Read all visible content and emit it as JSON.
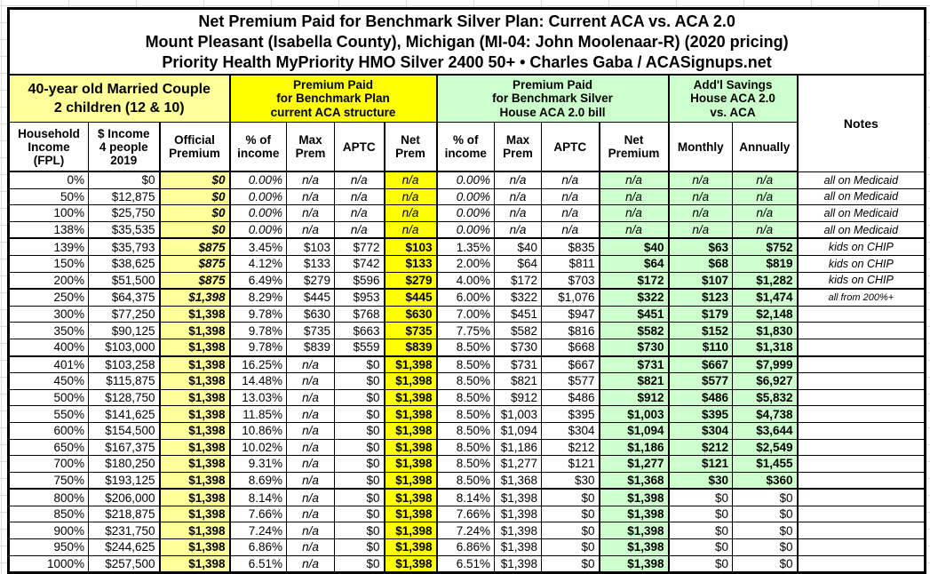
{
  "title_lines": [
    "Net Premium Paid for Benchmark Silver Plan: Current ACA vs. ACA 2.0",
    "Mount Pleasant (Isabella County), Michigan (MI-04: John Moolenaar-R) (2020 pricing)",
    "Priority Health MyPriority HMO Silver 2400 50+ • Charles Gaba / ACASignups.net"
  ],
  "groups": {
    "family": {
      "lines": [
        "40-year old Married Couple",
        "2 children (12 & 10)"
      ]
    },
    "current_aca": {
      "lines": [
        "Premium Paid",
        "for Benchmark Plan",
        "current ACA structure"
      ]
    },
    "house_aca": {
      "lines": [
        "Premium Paid",
        "for Benchmark Silver",
        "House ACA 2.0 bill"
      ]
    },
    "savings": {
      "lines": [
        "Add'l Savings",
        "House ACA 2.0",
        "vs. ACA"
      ]
    },
    "notes_label": "Notes"
  },
  "column_headers": [
    {
      "key": "fpl",
      "lines": [
        "Household",
        "Income",
        "(FPL)"
      ]
    },
    {
      "key": "income",
      "lines": [
        "$ Income",
        "4 people",
        "2019"
      ]
    },
    {
      "key": "official",
      "lines": [
        "Official",
        "Premium"
      ],
      "bg": "light_yellow"
    },
    {
      "key": "aca_pct",
      "lines": [
        "% of",
        "income"
      ]
    },
    {
      "key": "aca_max",
      "lines": [
        "Max",
        "Prem"
      ]
    },
    {
      "key": "aca_aptc",
      "lines": [
        "APTC"
      ]
    },
    {
      "key": "aca_net",
      "lines": [
        "Net",
        "Prem"
      ],
      "bg": "yellow"
    },
    {
      "key": "house_pct",
      "lines": [
        "% of",
        "income"
      ]
    },
    {
      "key": "house_max",
      "lines": [
        "Max",
        "Prem"
      ]
    },
    {
      "key": "house_aptc",
      "lines": [
        "APTC"
      ]
    },
    {
      "key": "house_net",
      "lines": [
        "Net",
        "Premium"
      ],
      "bg": "light_green"
    },
    {
      "key": "monthly",
      "lines": [
        "Monthly"
      ],
      "bg": "light_green"
    },
    {
      "key": "annually",
      "lines": [
        "Annually"
      ],
      "bg": "light_green"
    }
  ],
  "colors": {
    "light_yellow": "#FFFF99",
    "yellow": "#FFFF00",
    "light_green": "#CCFFCC",
    "border": "#000000"
  },
  "chart_data": {
    "type": "table",
    "title": "Net Premium Paid for Benchmark Silver Plan: Current ACA vs. ACA 2.0",
    "rows": [
      {
        "fpl": "0%",
        "income": "$0",
        "official": "$0",
        "official_italic": true,
        "aca_pct": "0.00%",
        "aca_max": "n/a",
        "aca_aptc": "n/a",
        "aca_net": "n/a",
        "house_pct": "0.00%",
        "house_max": "n/a",
        "house_aptc": "n/a",
        "house_net": "n/a",
        "monthly": "n/a",
        "annually": "n/a",
        "savings_green": true,
        "note": "all on Medicaid"
      },
      {
        "fpl": "50%",
        "income": "$12,875",
        "official": "$0",
        "official_italic": true,
        "aca_pct": "0.00%",
        "aca_max": "n/a",
        "aca_aptc": "n/a",
        "aca_net": "n/a",
        "house_pct": "0.00%",
        "house_max": "n/a",
        "house_aptc": "n/a",
        "house_net": "n/a",
        "monthly": "n/a",
        "annually": "n/a",
        "savings_green": true,
        "note": "all on Medicaid"
      },
      {
        "fpl": "100%",
        "income": "$25,750",
        "official": "$0",
        "official_italic": true,
        "aca_pct": "0.00%",
        "aca_max": "n/a",
        "aca_aptc": "n/a",
        "aca_net": "n/a",
        "house_pct": "0.00%",
        "house_max": "n/a",
        "house_aptc": "n/a",
        "house_net": "n/a",
        "monthly": "n/a",
        "annually": "n/a",
        "savings_green": true,
        "note": "all on Medicaid"
      },
      {
        "fpl": "138%",
        "income": "$35,535",
        "official": "$0",
        "official_italic": true,
        "aca_pct": "0.00%",
        "aca_max": "n/a",
        "aca_aptc": "n/a",
        "aca_net": "n/a",
        "house_pct": "0.00%",
        "house_max": "n/a",
        "house_aptc": "n/a",
        "house_net": "n/a",
        "monthly": "n/a",
        "annually": "n/a",
        "savings_green": true,
        "note": "all on Medicaid",
        "thick_below": true
      },
      {
        "fpl": "139%",
        "income": "$35,793",
        "official": "$875",
        "official_italic": true,
        "aca_pct": "3.45%",
        "aca_max": "$103",
        "aca_aptc": "$772",
        "aca_net": "$103",
        "house_pct": "1.35%",
        "house_max": "$40",
        "house_aptc": "$835",
        "house_net": "$40",
        "monthly": "$63",
        "annually": "$752",
        "savings_green": true,
        "note": "kids on CHIP"
      },
      {
        "fpl": "150%",
        "income": "$38,625",
        "official": "$875",
        "official_italic": true,
        "aca_pct": "4.12%",
        "aca_max": "$133",
        "aca_aptc": "$742",
        "aca_net": "$133",
        "house_pct": "2.00%",
        "house_max": "$64",
        "house_aptc": "$811",
        "house_net": "$64",
        "monthly": "$68",
        "annually": "$819",
        "savings_green": true,
        "note": "kids on CHIP"
      },
      {
        "fpl": "200%",
        "income": "$51,500",
        "official": "$875",
        "official_italic": true,
        "aca_pct": "6.49%",
        "aca_max": "$279",
        "aca_aptc": "$596",
        "aca_net": "$279",
        "house_pct": "4.00%",
        "house_max": "$172",
        "house_aptc": "$703",
        "house_net": "$172",
        "monthly": "$107",
        "annually": "$1,282",
        "savings_green": true,
        "note": "kids on CHIP",
        "thick_below": true
      },
      {
        "fpl": "250%",
        "income": "$64,375",
        "official": "$1,398",
        "official_italic": true,
        "aca_pct": "8.29%",
        "aca_max": "$445",
        "aca_aptc": "$953",
        "aca_net": "$445",
        "house_pct": "6.00%",
        "house_max": "$322",
        "house_aptc": "$1,076",
        "house_net": "$322",
        "monthly": "$123",
        "annually": "$1,474",
        "savings_green": true,
        "note": "all from 200%+",
        "note_small": true
      },
      {
        "fpl": "300%",
        "income": "$77,250",
        "official": "$1,398",
        "aca_pct": "9.78%",
        "aca_max": "$630",
        "aca_aptc": "$768",
        "aca_net": "$630",
        "house_pct": "7.00%",
        "house_max": "$451",
        "house_aptc": "$947",
        "house_net": "$451",
        "monthly": "$179",
        "annually": "$2,148",
        "savings_green": true,
        "note": ""
      },
      {
        "fpl": "350%",
        "income": "$90,125",
        "official": "$1,398",
        "aca_pct": "9.78%",
        "aca_max": "$735",
        "aca_aptc": "$663",
        "aca_net": "$735",
        "house_pct": "7.75%",
        "house_max": "$582",
        "house_aptc": "$816",
        "house_net": "$582",
        "monthly": "$152",
        "annually": "$1,830",
        "savings_green": true,
        "note": ""
      },
      {
        "fpl": "400%",
        "income": "$103,000",
        "official": "$1,398",
        "aca_pct": "9.78%",
        "aca_max": "$839",
        "aca_aptc": "$559",
        "aca_net": "$839",
        "house_pct": "8.50%",
        "house_max": "$730",
        "house_aptc": "$668",
        "house_net": "$730",
        "monthly": "$110",
        "annually": "$1,318",
        "savings_green": true,
        "note": "",
        "thick_below": true
      },
      {
        "fpl": "401%",
        "income": "$103,258",
        "official": "$1,398",
        "aca_pct": "16.25%",
        "aca_max": "n/a",
        "aca_aptc": "$0",
        "aca_net": "$1,398",
        "house_pct": "8.50%",
        "house_max": "$731",
        "house_aptc": "$667",
        "house_net": "$731",
        "monthly": "$667",
        "annually": "$7,999",
        "savings_green": true,
        "note": ""
      },
      {
        "fpl": "450%",
        "income": "$115,875",
        "official": "$1,398",
        "aca_pct": "14.48%",
        "aca_max": "n/a",
        "aca_aptc": "$0",
        "aca_net": "$1,398",
        "house_pct": "8.50%",
        "house_max": "$821",
        "house_aptc": "$577",
        "house_net": "$821",
        "monthly": "$577",
        "annually": "$6,927",
        "savings_green": true,
        "note": ""
      },
      {
        "fpl": "500%",
        "income": "$128,750",
        "official": "$1,398",
        "aca_pct": "13.03%",
        "aca_max": "n/a",
        "aca_aptc": "$0",
        "aca_net": "$1,398",
        "house_pct": "8.50%",
        "house_max": "$912",
        "house_aptc": "$486",
        "house_net": "$912",
        "monthly": "$486",
        "annually": "$5,832",
        "savings_green": true,
        "note": ""
      },
      {
        "fpl": "550%",
        "income": "$141,625",
        "official": "$1,398",
        "aca_pct": "11.85%",
        "aca_max": "n/a",
        "aca_aptc": "$0",
        "aca_net": "$1,398",
        "house_pct": "8.50%",
        "house_max": "$1,003",
        "house_aptc": "$395",
        "house_net": "$1,003",
        "monthly": "$395",
        "annually": "$4,738",
        "savings_green": true,
        "note": ""
      },
      {
        "fpl": "600%",
        "income": "$154,500",
        "official": "$1,398",
        "aca_pct": "10.86%",
        "aca_max": "n/a",
        "aca_aptc": "$0",
        "aca_net": "$1,398",
        "house_pct": "8.50%",
        "house_max": "$1,094",
        "house_aptc": "$304",
        "house_net": "$1,094",
        "monthly": "$304",
        "annually": "$3,644",
        "savings_green": true,
        "note": ""
      },
      {
        "fpl": "650%",
        "income": "$167,375",
        "official": "$1,398",
        "aca_pct": "10.02%",
        "aca_max": "n/a",
        "aca_aptc": "$0",
        "aca_net": "$1,398",
        "house_pct": "8.50%",
        "house_max": "$1,186",
        "house_aptc": "$212",
        "house_net": "$1,186",
        "monthly": "$212",
        "annually": "$2,549",
        "savings_green": true,
        "note": ""
      },
      {
        "fpl": "700%",
        "income": "$180,250",
        "official": "$1,398",
        "aca_pct": "9.31%",
        "aca_max": "n/a",
        "aca_aptc": "$0",
        "aca_net": "$1,398",
        "house_pct": "8.50%",
        "house_max": "$1,277",
        "house_aptc": "$121",
        "house_net": "$1,277",
        "monthly": "$121",
        "annually": "$1,455",
        "savings_green": true,
        "note": ""
      },
      {
        "fpl": "750%",
        "income": "$193,125",
        "official": "$1,398",
        "aca_pct": "8.69%",
        "aca_max": "n/a",
        "aca_aptc": "$0",
        "aca_net": "$1,398",
        "house_pct": "8.50%",
        "house_max": "$1,368",
        "house_aptc": "$30",
        "house_net": "$1,368",
        "monthly": "$30",
        "annually": "$360",
        "savings_green": true,
        "note": "",
        "thick_below": true
      },
      {
        "fpl": "800%",
        "income": "$206,000",
        "official": "$1,398",
        "aca_pct": "8.14%",
        "aca_max": "n/a",
        "aca_aptc": "$0",
        "aca_net": "$1,398",
        "house_pct": "8.14%",
        "house_max": "$1,398",
        "house_aptc": "$0",
        "house_net": "$1,398",
        "monthly": "$0",
        "annually": "$0",
        "savings_green": false,
        "note": ""
      },
      {
        "fpl": "850%",
        "income": "$218,875",
        "official": "$1,398",
        "aca_pct": "7.66%",
        "aca_max": "n/a",
        "aca_aptc": "$0",
        "aca_net": "$1,398",
        "house_pct": "7.66%",
        "house_max": "$1,398",
        "house_aptc": "$0",
        "house_net": "$1,398",
        "monthly": "$0",
        "annually": "$0",
        "savings_green": false,
        "note": ""
      },
      {
        "fpl": "900%",
        "income": "$231,750",
        "official": "$1,398",
        "aca_pct": "7.24%",
        "aca_max": "n/a",
        "aca_aptc": "$0",
        "aca_net": "$1,398",
        "house_pct": "7.24%",
        "house_max": "$1,398",
        "house_aptc": "$0",
        "house_net": "$1,398",
        "monthly": "$0",
        "annually": "$0",
        "savings_green": false,
        "note": ""
      },
      {
        "fpl": "950%",
        "income": "$244,625",
        "official": "$1,398",
        "aca_pct": "6.86%",
        "aca_max": "n/a",
        "aca_aptc": "$0",
        "aca_net": "$1,398",
        "house_pct": "6.86%",
        "house_max": "$1,398",
        "house_aptc": "$0",
        "house_net": "$1,398",
        "monthly": "$0",
        "annually": "$0",
        "savings_green": false,
        "note": ""
      },
      {
        "fpl": "1000%",
        "income": "$257,500",
        "official": "$1,398",
        "aca_pct": "6.51%",
        "aca_max": "n/a",
        "aca_aptc": "$0",
        "aca_net": "$1,398",
        "house_pct": "6.51%",
        "house_max": "$1,398",
        "house_aptc": "$0",
        "house_net": "$1,398",
        "monthly": "$0",
        "annually": "$0",
        "savings_green": false,
        "note": ""
      }
    ]
  }
}
